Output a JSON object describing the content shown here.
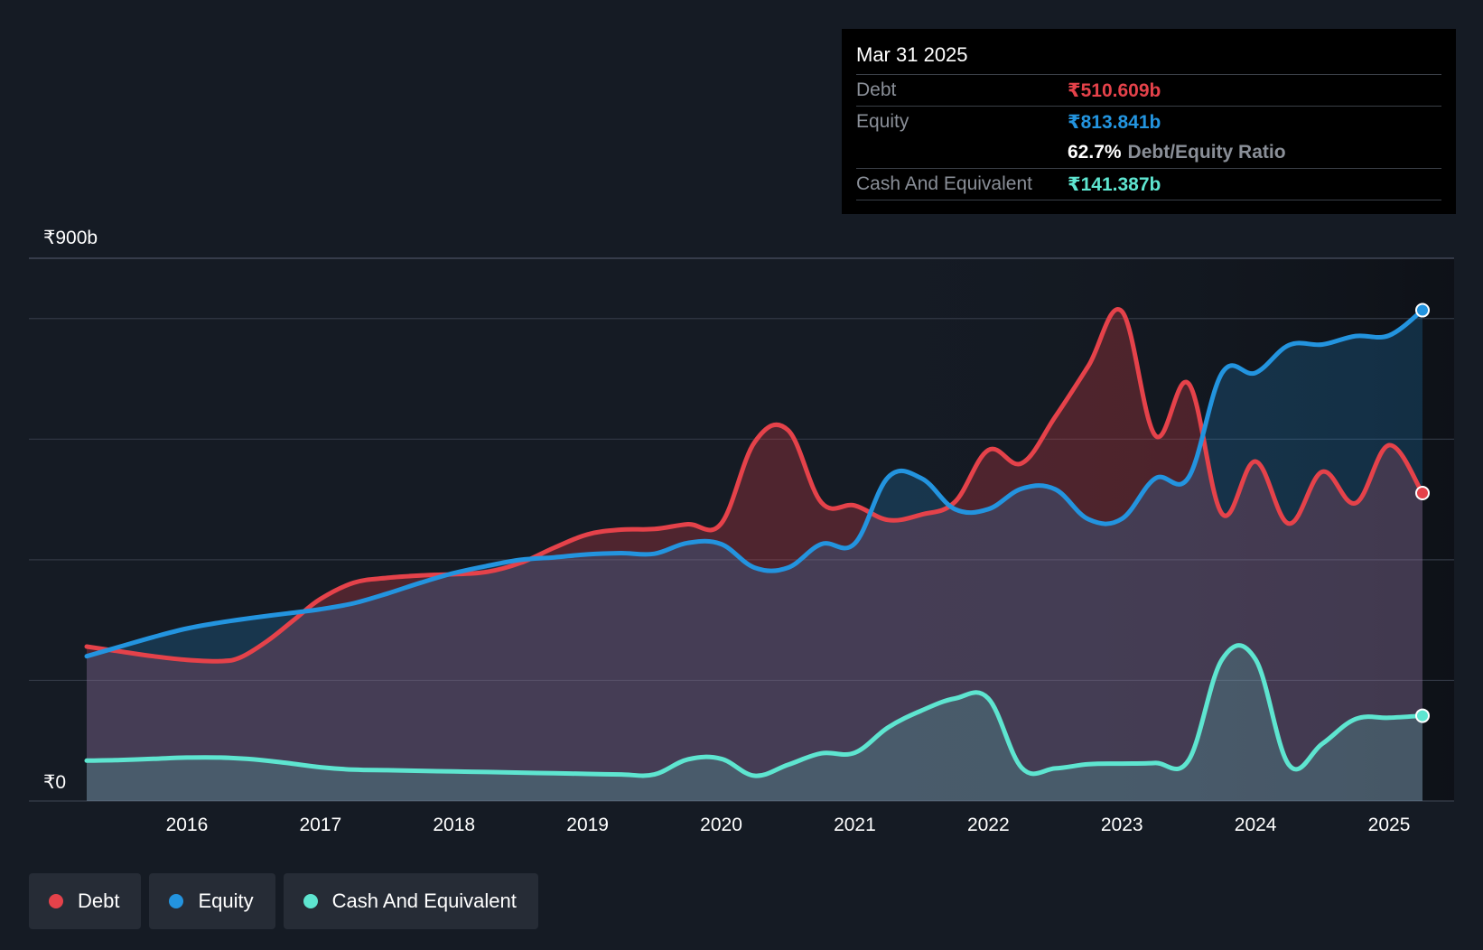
{
  "chart_data": {
    "type": "area",
    "currency_prefix": "₹",
    "y_unit": "b",
    "ylim": [
      0,
      900
    ],
    "y_tick_labels": [
      {
        "value": 900,
        "label": "₹900b"
      },
      {
        "value": 0,
        "label": "₹0"
      }
    ],
    "gridlines": [
      0,
      200,
      400,
      600,
      800,
      900
    ],
    "x_range": [
      2014.9,
      2025.3
    ],
    "x_ticks": [
      {
        "value": 2016,
        "label": "2016"
      },
      {
        "value": 2017,
        "label": "2017"
      },
      {
        "value": 2018,
        "label": "2018"
      },
      {
        "value": 2019,
        "label": "2019"
      },
      {
        "value": 2020,
        "label": "2020"
      },
      {
        "value": 2021,
        "label": "2021"
      },
      {
        "value": 2022,
        "label": "2022"
      },
      {
        "value": 2023,
        "label": "2023"
      },
      {
        "value": 2024,
        "label": "2024"
      },
      {
        "value": 2025,
        "label": "2025"
      }
    ],
    "highlight_start": 2020.75,
    "series": [
      {
        "name": "Debt",
        "color": "#e5424a",
        "points": [
          [
            2015.25,
            256
          ],
          [
            2015.5,
            248
          ],
          [
            2015.75,
            240
          ],
          [
            2016.0,
            234
          ],
          [
            2016.25,
            232
          ],
          [
            2016.4,
            238
          ],
          [
            2016.6,
            265
          ],
          [
            2016.8,
            300
          ],
          [
            2017.0,
            335
          ],
          [
            2017.25,
            362
          ],
          [
            2017.5,
            370
          ],
          [
            2017.75,
            374
          ],
          [
            2018.0,
            376
          ],
          [
            2018.25,
            380
          ],
          [
            2018.5,
            395
          ],
          [
            2018.75,
            420
          ],
          [
            2019.0,
            442
          ],
          [
            2019.25,
            450
          ],
          [
            2019.5,
            451
          ],
          [
            2019.75,
            459
          ],
          [
            2020.0,
            460
          ],
          [
            2020.25,
            595
          ],
          [
            2020.5,
            615
          ],
          [
            2020.75,
            495
          ],
          [
            2021.0,
            490
          ],
          [
            2021.25,
            466
          ],
          [
            2021.5,
            475
          ],
          [
            2021.75,
            496
          ],
          [
            2022.0,
            582
          ],
          [
            2022.25,
            560
          ],
          [
            2022.5,
            637
          ],
          [
            2022.75,
            722
          ],
          [
            2023.0,
            812
          ],
          [
            2023.25,
            606
          ],
          [
            2023.5,
            692
          ],
          [
            2023.75,
            476
          ],
          [
            2024.0,
            563
          ],
          [
            2024.25,
            460
          ],
          [
            2024.5,
            546
          ],
          [
            2024.75,
            494
          ],
          [
            2025.0,
            590
          ],
          [
            2025.25,
            510.609
          ]
        ]
      },
      {
        "name": "Equity",
        "color": "#2394df",
        "points": [
          [
            2015.25,
            240
          ],
          [
            2015.5,
            256
          ],
          [
            2015.75,
            272
          ],
          [
            2016.0,
            286
          ],
          [
            2016.25,
            296
          ],
          [
            2016.5,
            304
          ],
          [
            2016.75,
            311
          ],
          [
            2017.0,
            318
          ],
          [
            2017.25,
            328
          ],
          [
            2017.5,
            344
          ],
          [
            2017.75,
            362
          ],
          [
            2018.0,
            378
          ],
          [
            2018.25,
            390
          ],
          [
            2018.5,
            400
          ],
          [
            2018.75,
            404
          ],
          [
            2019.0,
            409
          ],
          [
            2019.25,
            411
          ],
          [
            2019.5,
            410
          ],
          [
            2019.75,
            428
          ],
          [
            2020.0,
            426
          ],
          [
            2020.25,
            387
          ],
          [
            2020.5,
            387
          ],
          [
            2020.75,
            426
          ],
          [
            2021.0,
            427
          ],
          [
            2021.25,
            537
          ],
          [
            2021.5,
            535
          ],
          [
            2021.75,
            484
          ],
          [
            2022.0,
            484
          ],
          [
            2022.25,
            518
          ],
          [
            2022.5,
            517
          ],
          [
            2022.75,
            467
          ],
          [
            2023.0,
            468
          ],
          [
            2023.25,
            535
          ],
          [
            2023.5,
            537
          ],
          [
            2023.75,
            710
          ],
          [
            2024.0,
            710
          ],
          [
            2024.25,
            756
          ],
          [
            2024.5,
            757
          ],
          [
            2024.75,
            771
          ],
          [
            2025.0,
            772
          ],
          [
            2025.25,
            813.841
          ]
        ]
      },
      {
        "name": "Cash And Equivalent",
        "color": "#5ee5d0",
        "points": [
          [
            2015.25,
            67
          ],
          [
            2015.5,
            68
          ],
          [
            2015.75,
            70
          ],
          [
            2016.0,
            72
          ],
          [
            2016.25,
            72
          ],
          [
            2016.5,
            69
          ],
          [
            2016.75,
            63
          ],
          [
            2017.0,
            56
          ],
          [
            2017.25,
            52
          ],
          [
            2017.5,
            51
          ],
          [
            2017.75,
            50
          ],
          [
            2018.0,
            49
          ],
          [
            2018.25,
            48
          ],
          [
            2018.5,
            47
          ],
          [
            2018.75,
            46
          ],
          [
            2019.0,
            45
          ],
          [
            2019.25,
            44
          ],
          [
            2019.5,
            44
          ],
          [
            2019.75,
            69
          ],
          [
            2020.0,
            70
          ],
          [
            2020.25,
            42
          ],
          [
            2020.5,
            60
          ],
          [
            2020.75,
            79
          ],
          [
            2021.0,
            80
          ],
          [
            2021.25,
            122
          ],
          [
            2021.5,
            150
          ],
          [
            2021.75,
            170
          ],
          [
            2022.0,
            170
          ],
          [
            2022.25,
            55
          ],
          [
            2022.5,
            54
          ],
          [
            2022.75,
            61
          ],
          [
            2023.0,
            62
          ],
          [
            2023.25,
            63
          ],
          [
            2023.5,
            68
          ],
          [
            2023.75,
            235
          ],
          [
            2024.0,
            235
          ],
          [
            2024.25,
            60
          ],
          [
            2024.5,
            95
          ],
          [
            2024.75,
            136
          ],
          [
            2025.0,
            138
          ],
          [
            2025.25,
            141.387
          ]
        ]
      }
    ]
  },
  "tooltip": {
    "date": "Mar 31 2025",
    "debt_label": "Debt",
    "debt_value": "₹510.609b",
    "equity_label": "Equity",
    "equity_value": "₹813.841b",
    "ratio_value": "62.7%",
    "ratio_label": "Debt/Equity Ratio",
    "cash_label": "Cash And Equivalent",
    "cash_value": "₹141.387b"
  },
  "legend": {
    "debt": "Debt",
    "equity": "Equity",
    "cash": "Cash And Equivalent"
  },
  "colors": {
    "debt": "#e5424a",
    "equity": "#2394df",
    "cash": "#5ee5d0"
  }
}
